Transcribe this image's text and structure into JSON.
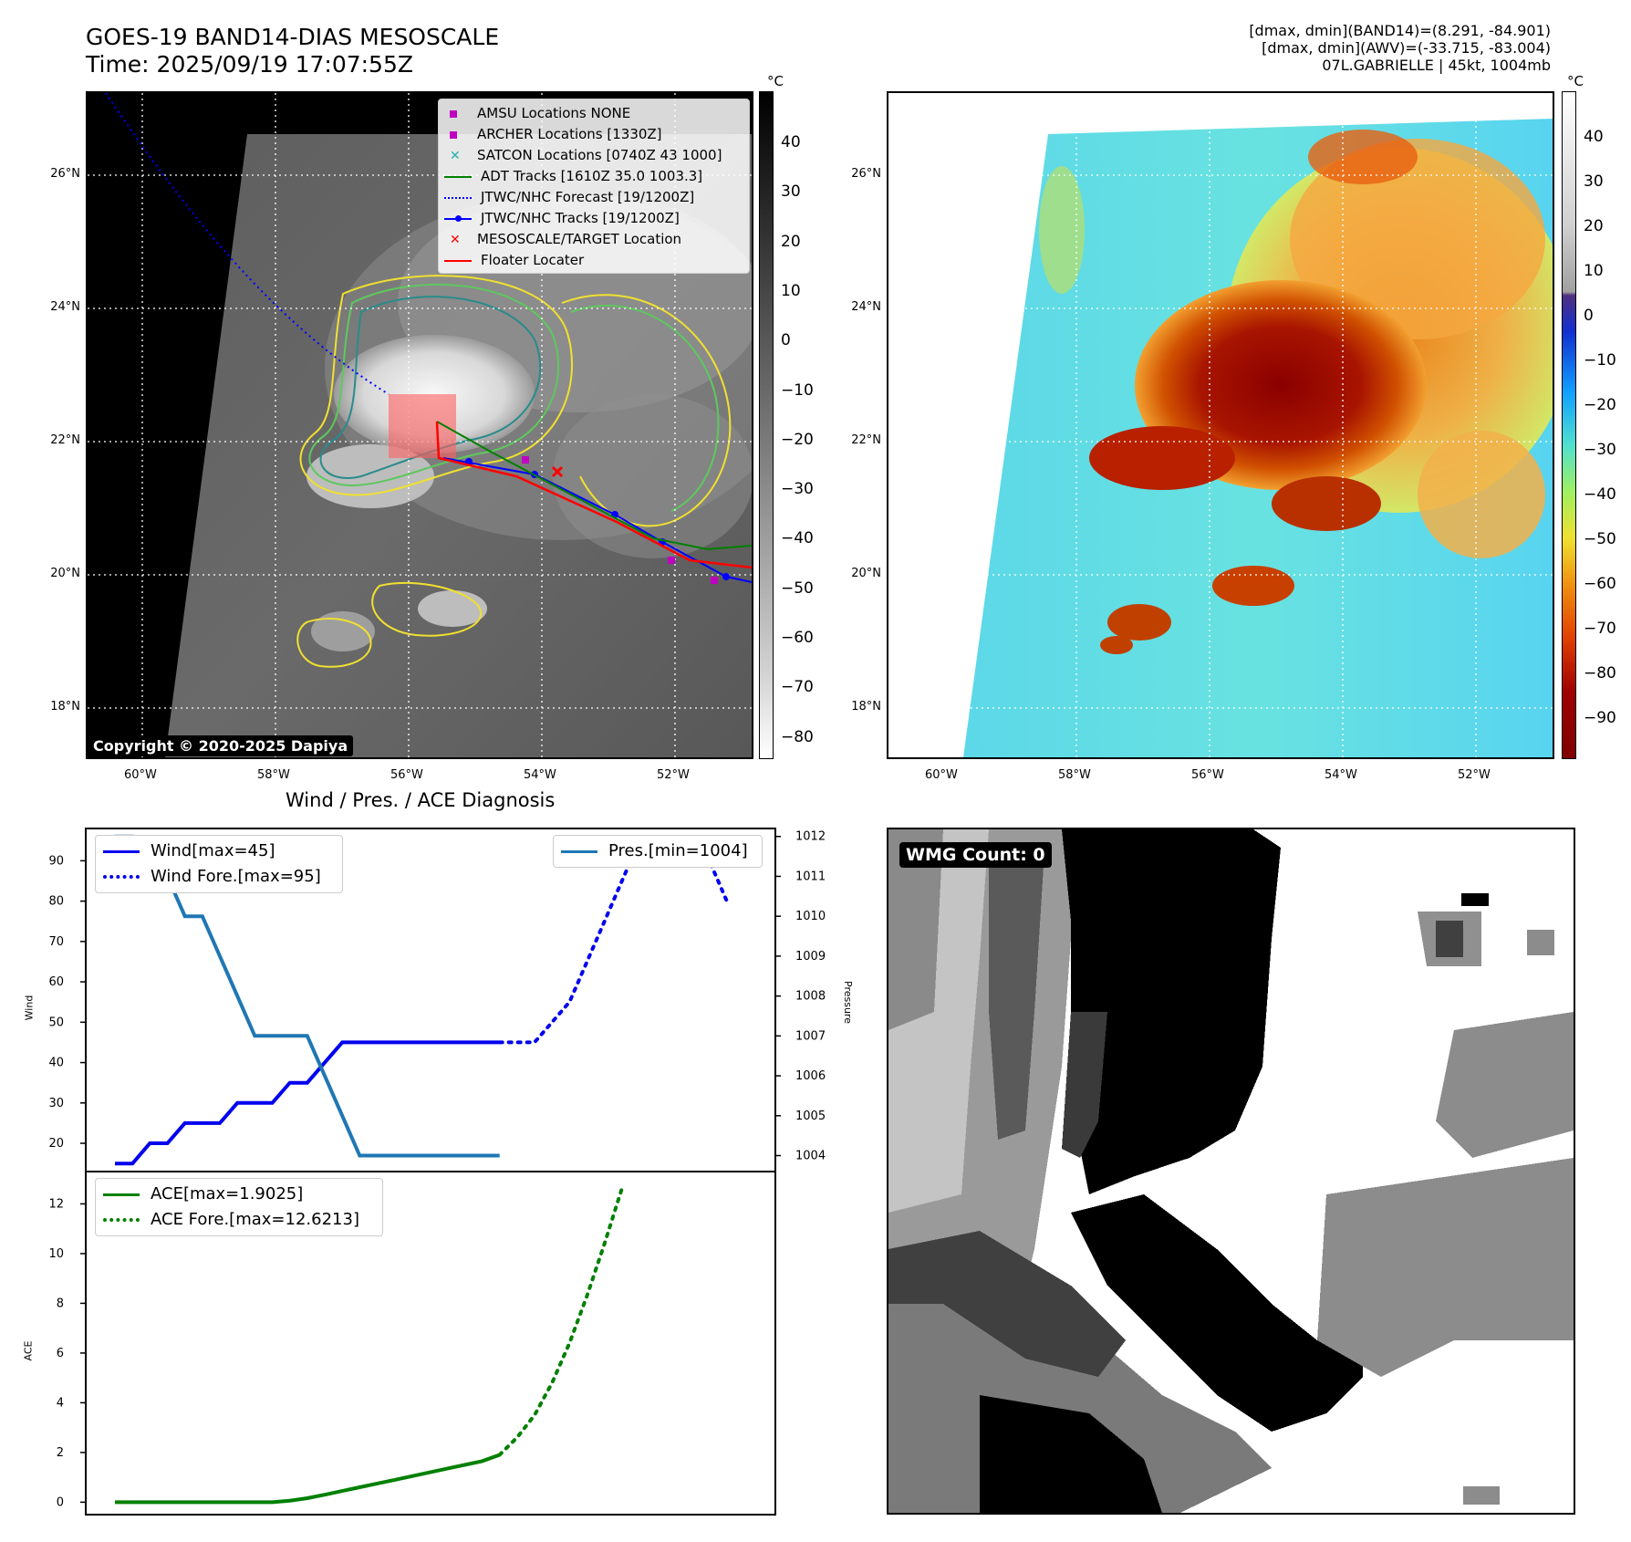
{
  "header": {
    "title_line1": "GOES-19 BAND14-DIAS MESOSCALE",
    "title_line2": "Time: 2025/09/19 17:07:55Z",
    "stats_line1": "[dmax, dmin](BAND14)=(8.291, -84.901)",
    "stats_line2": "[dmax, dmin](AWV)=(-33.715, -83.004)",
    "stats_line3": "07L.GABRIELLE | 45kt, 1004mb"
  },
  "map_axes": {
    "lat_labels": [
      "26°N",
      "24°N",
      "22°N",
      "20°N",
      "18°N"
    ],
    "lon_labels": [
      "60°W",
      "58°W",
      "56°W",
      "54°W",
      "52°W"
    ],
    "lon_labels_right": [
      "60°W",
      "58°W",
      "56°W",
      "54°W",
      "52°W"
    ]
  },
  "colorbar_left": {
    "unit": "°C",
    "ticks": [
      "40",
      "30",
      "20",
      "10",
      "0",
      "−10",
      "−20",
      "−30",
      "−40",
      "−50",
      "−60",
      "−70",
      "−80"
    ]
  },
  "colorbar_right": {
    "unit": "°C",
    "ticks": [
      "40",
      "30",
      "20",
      "10",
      "0",
      "−10",
      "−20",
      "−30",
      "−40",
      "−50",
      "−60",
      "−70",
      "−80",
      "−90"
    ]
  },
  "map_legend": {
    "items": [
      {
        "label": "AMSU Locations NONE",
        "symbol": "square",
        "color": "#c000c0"
      },
      {
        "label": "ARCHER Locations [1330Z]",
        "symbol": "square",
        "color": "#c000c0"
      },
      {
        "label": "SATCON Locations [0740Z 43 1000]",
        "symbol": "x",
        "color": "#20b0b0"
      },
      {
        "label": "ADT Tracks [1610Z 35.0 1003.3]",
        "symbol": "line",
        "color": "#008000"
      },
      {
        "label": "JTWC/NHC Forecast [19/1200Z]",
        "symbol": "dotted",
        "color": "#0000ff"
      },
      {
        "label": "JTWC/NHC Tracks [19/1200Z]",
        "symbol": "line-dot",
        "color": "#0000ff"
      },
      {
        "label": "MESOSCALE/TARGET Location",
        "symbol": "x",
        "color": "#ff0000"
      },
      {
        "label": "Floater Locater",
        "symbol": "line",
        "color": "#ff0000"
      }
    ]
  },
  "copyright": "Copyright © 2020-2025 Dapiya",
  "wmg_label": "WMG Count: 0",
  "chart_data": [
    {
      "type": "line",
      "title": "Wind / Pres. / ACE Diagnosis",
      "ylabel": "Wind",
      "ylabel_right": "Pressure",
      "ylim": [
        13,
        98
      ],
      "ylim_right": [
        1003.6,
        1012.2
      ],
      "yticks": [
        20,
        30,
        40,
        50,
        60,
        70,
        80,
        90
      ],
      "yticks_right": [
        1004,
        1005,
        1006,
        1007,
        1008,
        1009,
        1010,
        1011,
        1012
      ],
      "series": [
        {
          "name": "Wind[max=45]",
          "axis": "left",
          "style": "solid",
          "color": "#0000ee",
          "values": [
            15,
            15,
            20,
            20,
            25,
            25,
            25,
            30,
            30,
            30,
            35,
            35,
            40,
            45,
            45,
            45,
            45,
            45,
            45,
            45,
            45,
            45,
            45
          ]
        },
        {
          "name": "Wind Fore.[max=95]",
          "axis": "left",
          "style": "dotted",
          "color": "#0000ee",
          "x_start": 22,
          "values": [
            45,
            45,
            45,
            50,
            55,
            65,
            75,
            85,
            95,
            95,
            95,
            90,
            90,
            80
          ]
        },
        {
          "name": "Pres.[min=1004]",
          "axis": "right",
          "style": "solid",
          "color": "#1f77b4",
          "values": [
            1012,
            1012,
            1011,
            1011,
            1010,
            1010,
            1009,
            1008,
            1007,
            1007,
            1007,
            1007,
            1006,
            1005,
            1004,
            1004,
            1004,
            1004,
            1004,
            1004,
            1004,
            1004,
            1004
          ]
        }
      ]
    },
    {
      "type": "line",
      "ylabel": "ACE",
      "ylim": [
        -0.5,
        13.3
      ],
      "yticks": [
        0,
        2,
        4,
        6,
        8,
        10,
        12
      ],
      "series": [
        {
          "name": "ACE[max=1.9025]",
          "style": "solid",
          "color": "#008000",
          "values": [
            0,
            0,
            0,
            0,
            0,
            0,
            0,
            0,
            0,
            0,
            0.06,
            0.16,
            0.3,
            0.45,
            0.6,
            0.75,
            0.9,
            1.05,
            1.2,
            1.35,
            1.5,
            1.65,
            1.9025
          ]
        },
        {
          "name": "ACE Fore.[max=12.6213]",
          "style": "dotted",
          "color": "#008000",
          "x_start": 22,
          "values": [
            1.9025,
            2.6,
            3.5,
            4.8,
            6.4,
            8.3,
            10.4,
            12.6213
          ]
        }
      ]
    }
  ]
}
